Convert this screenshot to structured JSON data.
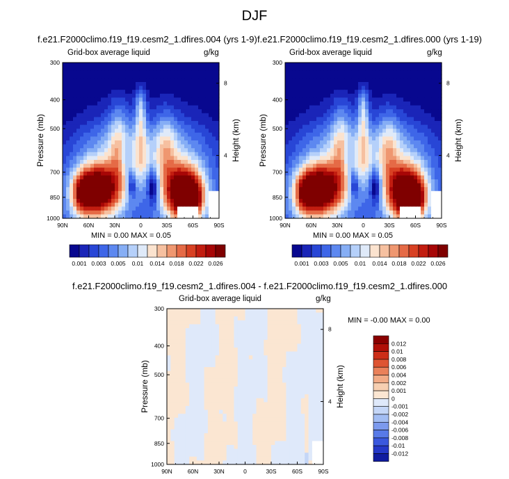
{
  "title": "DJF",
  "colors": {
    "scale": [
      "#08088f",
      "#1a25b8",
      "#2846d6",
      "#3e66e8",
      "#5d88f0",
      "#86aef5",
      "#b5d0fa",
      "#dfeaf9",
      "#fbe3cf",
      "#f6c0a0",
      "#ef9770",
      "#e56a46",
      "#d84123",
      "#c21d10",
      "#a70606",
      "#7f0000"
    ],
    "diff_scale": [
      "#101ca0",
      "#2438c8",
      "#3a58de",
      "#587ae8",
      "#7c9aee",
      "#a2bdf3",
      "#c4d6f7",
      "#dfe9fa",
      "#fbe6d2",
      "#f7cfb1",
      "#f2ab86",
      "#ea815a",
      "#de5432",
      "#cc2e18",
      "#b01008",
      "#8a0000"
    ]
  },
  "panels": [
    {
      "title": "f.e21.F2000climo.f19_f19.cesm2_1.dfires.004 (yrs 1-9)",
      "left_label": "Grid-box average liquid",
      "right_label": "g/kg",
      "ylabel": "Pressure (mb)",
      "y2label": "Height (km)",
      "minmax": "MIN =   0.00   MAX =   0.05"
    },
    {
      "title": "f.e21.F2000climo.f19_f19.cesm2_1.dfires.000 (yrs 1-19)",
      "left_label": "Grid-box average liquid",
      "right_label": "g/kg",
      "ylabel": "Pressure (mb)",
      "y2label": "Height (km)",
      "minmax": "MIN =   0.00   MAX =   0.05"
    },
    {
      "title": "f.e21.F2000climo.f19_f19.cesm2_1.dfires.004 - f.e21.F2000climo.f19_f19.cesm2_1.dfires.000",
      "left_label": "Grid-box average liquid",
      "right_label": "g/kg",
      "ylabel": "Pressure (mb)",
      "y2label": "Height (km)",
      "minmax": "MIN =  -0.00   MAX =   0.00"
    }
  ],
  "chart_data": [
    {
      "type": "heatmap",
      "title": "f.e21.F2000climo.f19_f19.cesm2_1.dfires.004 (yrs 1-9)",
      "xlabel": "",
      "ylabel": "Pressure (mb)",
      "y2label": "Height (km)",
      "xticks": [
        "90N",
        "60N",
        "30N",
        "0",
        "30S",
        "60S",
        "90S"
      ],
      "yticks": [
        300,
        400,
        500,
        700,
        850,
        1000
      ],
      "y2ticks": [
        8,
        4
      ],
      "ylim": [
        1000,
        300
      ],
      "yscale": "log",
      "min": 0.0,
      "max": 0.05,
      "colorbar_labels": [
        "0.001",
        "0.003",
        "0.005",
        "0.01",
        "0.014",
        "0.018",
        "0.022",
        "0.026"
      ]
    },
    {
      "type": "heatmap",
      "title": "f.e21.F2000climo.f19_f19.cesm2_1.dfires.000 (yrs 1-19)",
      "xlabel": "",
      "ylabel": "Pressure (mb)",
      "y2label": "Height (km)",
      "xticks": [
        "90N",
        "60N",
        "30N",
        "0",
        "30S",
        "60S",
        "90S"
      ],
      "yticks": [
        300,
        400,
        500,
        700,
        850,
        1000
      ],
      "y2ticks": [
        8,
        4
      ],
      "ylim": [
        1000,
        300
      ],
      "yscale": "log",
      "min": 0.0,
      "max": 0.05,
      "colorbar_labels": [
        "0.001",
        "0.003",
        "0.005",
        "0.01",
        "0.014",
        "0.018",
        "0.022",
        "0.026"
      ]
    },
    {
      "type": "heatmap",
      "title": "f.e21.F2000climo.f19_f19.cesm2_1.dfires.004 - f.e21.F2000climo.f19_f19.cesm2_1.dfires.000",
      "xlabel": "",
      "ylabel": "Pressure (mb)",
      "y2label": "Height (km)",
      "xticks": [
        "90N",
        "60N",
        "30N",
        "0",
        "30S",
        "60S",
        "90S"
      ],
      "yticks": [
        300,
        400,
        500,
        700,
        850,
        1000
      ],
      "y2ticks": [
        8,
        4
      ],
      "ylim": [
        1000,
        300
      ],
      "yscale": "log",
      "min": -0.0,
      "max": 0.0,
      "colorbar_labels": [
        "0.012",
        "0.01",
        "0.008",
        "0.006",
        "0.004",
        "0.002",
        "0.001",
        "0",
        "-0.001",
        "-0.002",
        "-0.004",
        "-0.006",
        "-0.008",
        "-0.01",
        "-0.012"
      ]
    }
  ]
}
